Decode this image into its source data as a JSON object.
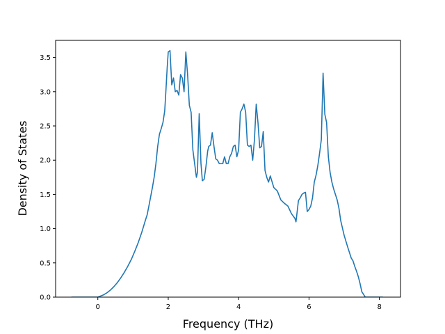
{
  "chart_data": {
    "type": "line",
    "title": "",
    "xlabel": "Frequency (THz)",
    "ylabel": "Density of States",
    "xlim": [
      -1.2,
      8.6
    ],
    "ylim": [
      0,
      3.75
    ],
    "xticks": [
      0,
      2,
      4,
      6,
      8
    ],
    "yticks": [
      0.0,
      0.5,
      1.0,
      1.5,
      2.0,
      2.5,
      3.0,
      3.5
    ],
    "xtick_labels": [
      "0",
      "2",
      "4",
      "6",
      "8"
    ],
    "ytick_labels": [
      "0.0",
      "0.5",
      "1.0",
      "1.5",
      "2.0",
      "2.5",
      "3.0",
      "3.5"
    ],
    "grid": false,
    "legend": false,
    "series": [
      {
        "color": "#1f77b4",
        "x": [
          -0.75,
          -0.5,
          -0.2,
          0.0,
          0.05,
          0.15,
          0.25,
          0.35,
          0.45,
          0.55,
          0.65,
          0.75,
          0.85,
          0.95,
          1.05,
          1.15,
          1.25,
          1.35,
          1.4,
          1.45,
          1.55,
          1.6,
          1.65,
          1.7,
          1.75,
          1.8,
          1.85,
          1.9,
          1.93,
          1.97,
          2.0,
          2.05,
          2.1,
          2.15,
          2.2,
          2.25,
          2.3,
          2.35,
          2.4,
          2.45,
          2.5,
          2.55,
          2.6,
          2.65,
          2.7,
          2.75,
          2.8,
          2.83,
          2.88,
          2.93,
          2.97,
          3.02,
          3.07,
          3.12,
          3.15,
          3.2,
          3.25,
          3.3,
          3.35,
          3.4,
          3.45,
          3.5,
          3.55,
          3.6,
          3.65,
          3.7,
          3.75,
          3.8,
          3.85,
          3.9,
          3.95,
          4.0,
          4.05,
          4.1,
          4.15,
          4.2,
          4.25,
          4.3,
          4.35,
          4.4,
          4.45,
          4.5,
          4.55,
          4.6,
          4.65,
          4.7,
          4.75,
          4.8,
          4.85,
          4.9,
          5.0,
          5.1,
          5.2,
          5.3,
          5.4,
          5.5,
          5.6,
          5.63,
          5.7,
          5.75,
          5.8,
          5.85,
          5.9,
          5.95,
          6.0,
          6.05,
          6.1,
          6.15,
          6.2,
          6.25,
          6.3,
          6.35,
          6.4,
          6.45,
          6.5,
          6.55,
          6.6,
          6.65,
          6.7,
          6.75,
          6.8,
          6.85,
          6.9,
          7.0,
          7.1,
          7.2,
          7.25,
          7.3,
          7.35,
          7.4,
          7.45,
          7.5,
          7.6,
          7.8,
          8.1
        ],
        "y": [
          0.0,
          0.0,
          0.0,
          0.0,
          0.01,
          0.03,
          0.06,
          0.1,
          0.15,
          0.21,
          0.28,
          0.36,
          0.45,
          0.55,
          0.67,
          0.8,
          0.95,
          1.12,
          1.2,
          1.33,
          1.6,
          1.75,
          1.95,
          2.2,
          2.38,
          2.46,
          2.55,
          2.72,
          2.98,
          3.35,
          3.58,
          3.6,
          3.1,
          3.2,
          3.0,
          3.02,
          2.95,
          3.25,
          3.2,
          3.0,
          3.58,
          3.25,
          2.8,
          2.7,
          2.15,
          1.95,
          1.75,
          1.82,
          2.68,
          1.95,
          1.7,
          1.72,
          1.9,
          2.13,
          2.2,
          2.22,
          2.4,
          2.2,
          2.02,
          2.0,
          1.95,
          1.95,
          1.95,
          2.05,
          1.95,
          1.95,
          2.05,
          2.1,
          2.2,
          2.22,
          2.05,
          2.15,
          2.7,
          2.75,
          2.82,
          2.7,
          2.22,
          2.2,
          2.22,
          2.0,
          2.3,
          2.82,
          2.55,
          2.18,
          2.2,
          2.42,
          1.85,
          1.75,
          1.68,
          1.77,
          1.6,
          1.55,
          1.42,
          1.37,
          1.33,
          1.22,
          1.15,
          1.1,
          1.41,
          1.45,
          1.5,
          1.52,
          1.53,
          1.25,
          1.28,
          1.33,
          1.45,
          1.68,
          1.78,
          1.92,
          2.1,
          2.3,
          3.27,
          2.67,
          2.55,
          2.05,
          1.82,
          1.68,
          1.58,
          1.5,
          1.42,
          1.3,
          1.12,
          0.9,
          0.73,
          0.57,
          0.53,
          0.45,
          0.38,
          0.3,
          0.2,
          0.08,
          0.0,
          0.0,
          0.0
        ]
      }
    ]
  }
}
